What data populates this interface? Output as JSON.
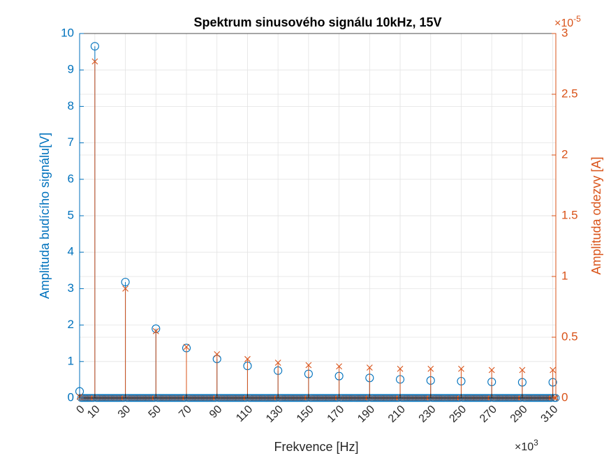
{
  "chart_data": {
    "type": "stem",
    "title": "Spektrum sinusového signálu 10kHz, 15V",
    "xlabel": "Frekvence [Hz]",
    "x_exponent_base": "×10",
    "x_exponent_power": "3",
    "ylabel_left": "Amplituda budícího signálu[V]",
    "ylabel_right": "Amplituda odezvy [A]",
    "y_right_exponent_base": "×10",
    "y_right_exponent_power": "-5",
    "xlim": [
      0,
      312
    ],
    "ylim_left": [
      0,
      10
    ],
    "ylim_right": [
      0,
      3
    ],
    "x_ticks": [
      0,
      10,
      30,
      50,
      70,
      90,
      110,
      130,
      150,
      170,
      190,
      210,
      230,
      250,
      270,
      290,
      310
    ],
    "x_tick_labels": [
      "0",
      "10",
      "30",
      "50",
      "70",
      "90",
      "110",
      "130",
      "150",
      "170",
      "190",
      "210",
      "230",
      "250",
      "270",
      "290",
      "310"
    ],
    "y_left_ticks": [
      0,
      1,
      2,
      3,
      4,
      5,
      6,
      7,
      8,
      9,
      10
    ],
    "y_left_tick_labels": [
      "0",
      "1",
      "2",
      "3",
      "4",
      "5",
      "6",
      "7",
      "8",
      "9",
      "10"
    ],
    "y_right_ticks": [
      0,
      0.5,
      1,
      1.5,
      2,
      2.5,
      3
    ],
    "y_right_tick_labels": [
      "0",
      "0.5",
      "1",
      "1.5",
      "2",
      "2.5",
      "3"
    ],
    "grid": true,
    "colors": {
      "left": "#0072BD",
      "right": "#D95319"
    },
    "series": [
      {
        "axis": "left",
        "marker": "circle",
        "x": [
          0,
          10,
          30,
          50,
          70,
          90,
          110,
          130,
          150,
          170,
          190,
          210,
          230,
          250,
          270,
          290,
          310
        ],
        "y": [
          0.18,
          9.65,
          3.18,
          1.9,
          1.37,
          1.07,
          0.88,
          0.75,
          0.66,
          0.6,
          0.55,
          0.51,
          0.48,
          0.46,
          0.44,
          0.43,
          0.43
        ]
      },
      {
        "axis": "right",
        "marker": "x",
        "x": [
          0,
          10,
          30,
          50,
          70,
          90,
          110,
          130,
          150,
          170,
          190,
          210,
          230,
          250,
          270,
          290,
          310
        ],
        "y": [
          0.01,
          2.77,
          0.9,
          0.55,
          0.42,
          0.36,
          0.32,
          0.29,
          0.27,
          0.26,
          0.25,
          0.24,
          0.24,
          0.24,
          0.23,
          0.23,
          0.23
        ]
      }
    ],
    "baseline_step": 1
  }
}
